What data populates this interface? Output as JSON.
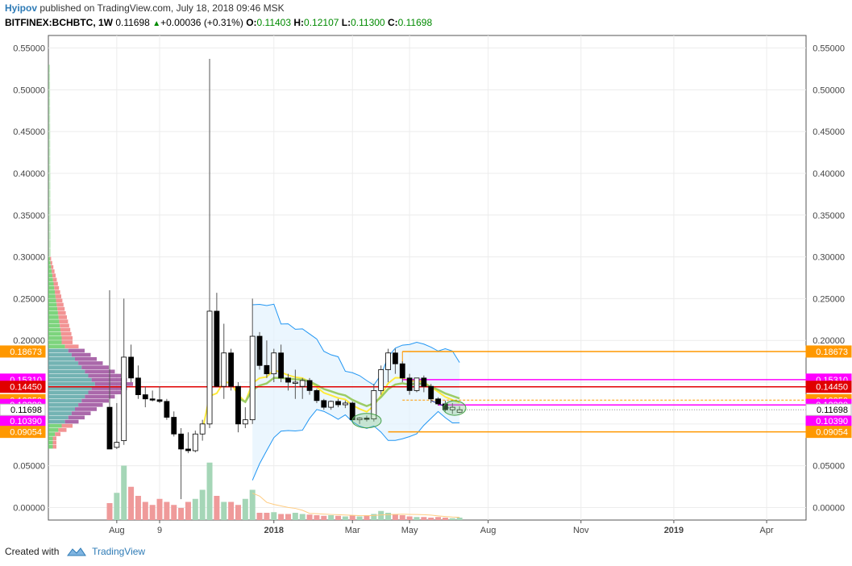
{
  "header": {
    "author": "Hyipov",
    "published": "published on TradingView.com, July 18, 2018 09:46 MSK",
    "symbol": "BITFINEX:BCHBTC, 1W",
    "last": "0.11698",
    "change": "+0.00036 (+0.31%)",
    "o_label": "O:",
    "o_value": "0.11403",
    "h_label": "H:",
    "h_value": "0.12107",
    "l_label": "L:",
    "l_value": "0.11300",
    "c_label": "C:",
    "c_value": "0.11698"
  },
  "footer": {
    "created_with": "Created with",
    "brand": "TradingView"
  },
  "colors": {
    "up": "#ffffff",
    "down": "#000000",
    "bb": "#2196f3",
    "bb_fill": "#e3f2fd",
    "ma_yellow": "#ffeb3b",
    "ma_green": "#9ccc65",
    "orange": "#ff9800",
    "magenta": "#ff00ff",
    "red": "#e00000",
    "vol_up": "#a5d6b7",
    "vol_down": "#ef9a9a",
    "vp_green": "#66cc66",
    "vp_red": "#f08080",
    "vp_teal": "#5aa6a6",
    "vp_purple": "#9b4d9b"
  },
  "chart_data": {
    "type": "candlestick",
    "interval": "1W",
    "y_range": [
      -0.015,
      0.565
    ],
    "y_ticks": [
      "0.55000",
      "0.50000",
      "0.45000",
      "0.40000",
      "0.35000",
      "0.30000",
      "0.25000",
      "0.20000",
      "0.15000",
      "0.10000",
      "0.05000",
      "0.00000"
    ],
    "visible_y_ticks": [
      "0.55000",
      "0.50000",
      "0.45000",
      "0.40000",
      "0.35000",
      "0.30000",
      "0.25000",
      "0.20000",
      "0.05000",
      "0.00000"
    ],
    "x_labels": [
      "Aug",
      "9",
      "2018",
      "Mar",
      "May",
      "Aug",
      "Nov",
      "2019",
      "Apr"
    ],
    "x_label_weeks": [
      1,
      7,
      23,
      34,
      42,
      53,
      66,
      79,
      92
    ],
    "grid": true,
    "candles": [
      {
        "o": 0.12,
        "h": 0.26,
        "l": 0.07,
        "c": 0.07
      },
      {
        "o": 0.072,
        "h": 0.125,
        "l": 0.07,
        "c": 0.078
      },
      {
        "o": 0.08,
        "h": 0.25,
        "l": 0.075,
        "c": 0.18
      },
      {
        "o": 0.18,
        "h": 0.195,
        "l": 0.15,
        "c": 0.155
      },
      {
        "o": 0.155,
        "h": 0.17,
        "l": 0.13,
        "c": 0.135
      },
      {
        "o": 0.135,
        "h": 0.145,
        "l": 0.12,
        "c": 0.13
      },
      {
        "o": 0.13,
        "h": 0.14,
        "l": 0.127,
        "c": 0.129
      },
      {
        "o": 0.129,
        "h": 0.145,
        "l": 0.125,
        "c": 0.127
      },
      {
        "o": 0.127,
        "h": 0.13,
        "l": 0.105,
        "c": 0.108
      },
      {
        "o": 0.108,
        "h": 0.115,
        "l": 0.085,
        "c": 0.088
      },
      {
        "o": 0.088,
        "h": 0.095,
        "l": 0.01,
        "c": 0.07
      },
      {
        "o": 0.07,
        "h": 0.09,
        "l": 0.065,
        "c": 0.068
      },
      {
        "o": 0.068,
        "h": 0.092,
        "l": 0.066,
        "c": 0.088
      },
      {
        "o": 0.088,
        "h": 0.105,
        "l": 0.08,
        "c": 0.1
      },
      {
        "o": 0.1,
        "h": 0.537,
        "l": 0.095,
        "c": 0.235
      },
      {
        "o": 0.235,
        "h": 0.257,
        "l": 0.145,
        "c": 0.145
      },
      {
        "o": 0.145,
        "h": 0.22,
        "l": 0.13,
        "c": 0.185
      },
      {
        "o": 0.185,
        "h": 0.19,
        "l": 0.14,
        "c": 0.145
      },
      {
        "o": 0.145,
        "h": 0.15,
        "l": 0.09,
        "c": 0.1
      },
      {
        "o": 0.1,
        "h": 0.12,
        "l": 0.095,
        "c": 0.105
      },
      {
        "o": 0.105,
        "h": 0.25,
        "l": 0.1,
        "c": 0.205
      },
      {
        "o": 0.205,
        "h": 0.21,
        "l": 0.165,
        "c": 0.17
      },
      {
        "o": 0.17,
        "h": 0.2,
        "l": 0.155,
        "c": 0.16
      },
      {
        "o": 0.16,
        "h": 0.19,
        "l": 0.15,
        "c": 0.185
      },
      {
        "o": 0.185,
        "h": 0.195,
        "l": 0.15,
        "c": 0.155
      },
      {
        "o": 0.155,
        "h": 0.16,
        "l": 0.14,
        "c": 0.15
      },
      {
        "o": 0.15,
        "h": 0.165,
        "l": 0.13,
        "c": 0.15
      },
      {
        "o": 0.145,
        "h": 0.155,
        "l": 0.13,
        "c": 0.152
      },
      {
        "o": 0.152,
        "h": 0.155,
        "l": 0.135,
        "c": 0.14
      },
      {
        "o": 0.14,
        "h": 0.142,
        "l": 0.125,
        "c": 0.128
      },
      {
        "o": 0.128,
        "h": 0.13,
        "l": 0.117,
        "c": 0.12
      },
      {
        "o": 0.12,
        "h": 0.128,
        "l": 0.117,
        "c": 0.127
      },
      {
        "o": 0.127,
        "h": 0.13,
        "l": 0.12,
        "c": 0.123
      },
      {
        "o": 0.123,
        "h": 0.128,
        "l": 0.119,
        "c": 0.125
      },
      {
        "o": 0.125,
        "h": 0.127,
        "l": 0.102,
        "c": 0.105
      },
      {
        "o": 0.105,
        "h": 0.108,
        "l": 0.1,
        "c": 0.107
      },
      {
        "o": 0.107,
        "h": 0.11,
        "l": 0.103,
        "c": 0.106
      },
      {
        "o": 0.106,
        "h": 0.148,
        "l": 0.103,
        "c": 0.14
      },
      {
        "o": 0.14,
        "h": 0.17,
        "l": 0.135,
        "c": 0.165
      },
      {
        "o": 0.165,
        "h": 0.19,
        "l": 0.15,
        "c": 0.185
      },
      {
        "o": 0.185,
        "h": 0.19,
        "l": 0.16,
        "c": 0.172
      },
      {
        "o": 0.172,
        "h": 0.175,
        "l": 0.15,
        "c": 0.155
      },
      {
        "o": 0.155,
        "h": 0.16,
        "l": 0.135,
        "c": 0.14
      },
      {
        "o": 0.14,
        "h": 0.155,
        "l": 0.138,
        "c": 0.155
      },
      {
        "o": 0.155,
        "h": 0.158,
        "l": 0.138,
        "c": 0.145
      },
      {
        "o": 0.145,
        "h": 0.148,
        "l": 0.125,
        "c": 0.13
      },
      {
        "o": 0.13,
        "h": 0.132,
        "l": 0.122,
        "c": 0.124
      },
      {
        "o": 0.124,
        "h": 0.128,
        "l": 0.115,
        "c": 0.117
      },
      {
        "o": 0.117,
        "h": 0.125,
        "l": 0.112,
        "c": 0.12
      },
      {
        "o": 0.114,
        "h": 0.1211,
        "l": 0.113,
        "c": 0.117
      }
    ],
    "volume_relative": [
      0.28,
      0.45,
      0.9,
      0.55,
      0.4,
      0.3,
      0.25,
      0.35,
      0.3,
      0.25,
      0.2,
      0.3,
      0.35,
      0.5,
      0.95,
      0.4,
      0.3,
      0.3,
      0.25,
      0.35,
      0.5,
      0.12,
      0.12,
      0.13,
      0.1,
      0.1,
      0.12,
      0.1,
      0.09,
      0.08,
      0.07,
      0.08,
      0.07,
      0.06,
      0.08,
      0.06,
      0.08,
      0.1,
      0.15,
      0.12,
      0.1,
      0.08,
      0.06,
      0.05,
      0.05,
      0.04,
      0.05,
      0.04,
      0.03,
      0.04
    ],
    "price_lines": [
      {
        "value": 0.18673,
        "label": "0.18673",
        "color": "orange"
      },
      {
        "value": 0.1531,
        "label": "0.15310",
        "color": "magenta"
      },
      {
        "value": 0.1445,
        "label": "0.14450",
        "color": "red"
      },
      {
        "value": 0.1285,
        "label": "0.12850",
        "color": "orange_dashed"
      },
      {
        "value": 0.1228,
        "label": "0.12280",
        "color": "magenta"
      },
      {
        "value": 0.1039,
        "label": "0.10390",
        "color": "magenta_tag"
      },
      {
        "value": 0.09054,
        "label": "0.09054",
        "color": "orange"
      }
    ],
    "last_price": {
      "value": 0.11698,
      "label": "0.11698"
    }
  }
}
